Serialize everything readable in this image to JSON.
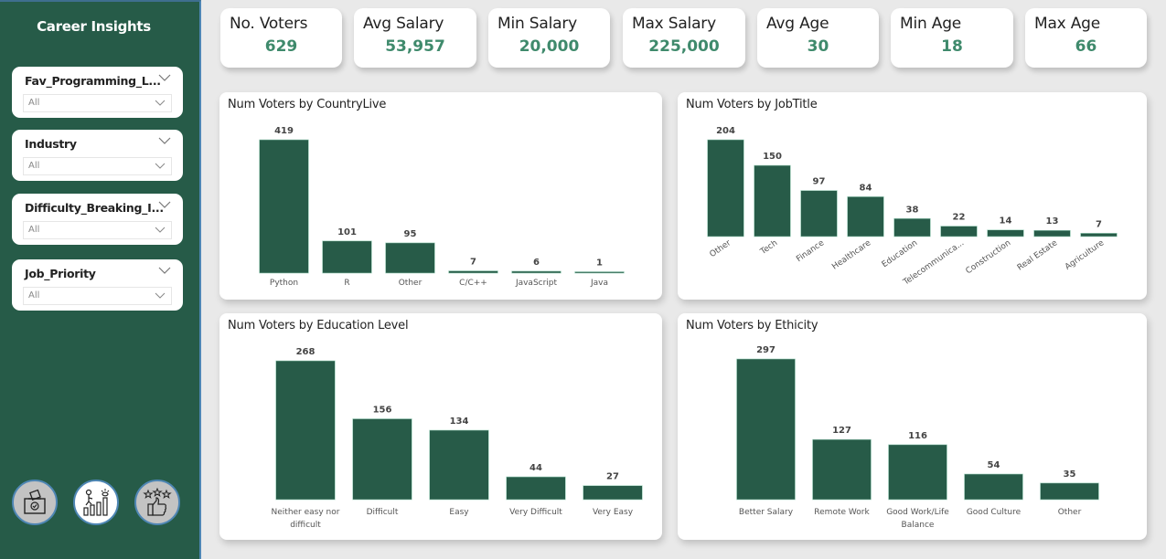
{
  "sidebar": {
    "title": "Career Insights",
    "slicers": [
      {
        "label": "Fav_Programming_L...",
        "value": "All"
      },
      {
        "label": "Industry",
        "value": "All"
      },
      {
        "label": "Difficulty_Breaking_I...",
        "value": "All"
      },
      {
        "label": "Job_Priority",
        "value": "All"
      }
    ],
    "nav_icons": [
      {
        "name": "ballot-box-icon",
        "active": false
      },
      {
        "name": "career-growth-icon",
        "active": true
      },
      {
        "name": "rating-thumbs-up-icon",
        "active": false
      }
    ]
  },
  "kpis": [
    {
      "label": "No. Voters",
      "value": "629"
    },
    {
      "label": "Avg Salary",
      "value": "53,957"
    },
    {
      "label": "Min Salary",
      "value": "20,000"
    },
    {
      "label": "Max Salary",
      "value": "225,000"
    },
    {
      "label": "Avg Age",
      "value": "30"
    },
    {
      "label": "Min Age",
      "value": "18"
    },
    {
      "label": "Max Age",
      "value": "66"
    }
  ],
  "colors": {
    "sidebar_bg": "#265b48",
    "bar": "#275b48",
    "kpi_value": "#3f8a6c",
    "page_bg": "#e9e9e9"
  },
  "chart_data": [
    {
      "type": "bar",
      "title": "Num Voters by CountryLive",
      "categories": [
        "Python",
        "R",
        "Other",
        "C/C++",
        "JavaScript",
        "Java"
      ],
      "values": [
        419,
        101,
        95,
        7,
        6,
        1
      ],
      "xlabel": "",
      "ylabel": "",
      "grid": false,
      "label_rotation": 0
    },
    {
      "type": "bar",
      "title": "Num Voters by JobTitle",
      "categories": [
        "Other",
        "Tech",
        "Finance",
        "Healthcare",
        "Education",
        "Telecommunica...",
        "Construction",
        "Real Estate",
        "Agriculture"
      ],
      "values": [
        204,
        150,
        97,
        84,
        38,
        22,
        14,
        13,
        7
      ],
      "xlabel": "",
      "ylabel": "",
      "grid": false,
      "label_rotation": -35
    },
    {
      "type": "bar",
      "title": "Num Voters by Education Level",
      "categories": [
        "Neither easy nor difficult",
        "Difficult",
        "Easy",
        "Very Difficult",
        "Very Easy"
      ],
      "values": [
        268,
        156,
        134,
        44,
        27
      ],
      "xlabel": "",
      "ylabel": "",
      "grid": false,
      "label_rotation": 0
    },
    {
      "type": "bar",
      "title": "Num Voters by Ethicity",
      "categories": [
        "Better Salary",
        "Remote Work",
        "Good Work/Life Balance",
        "Good Culture",
        "Other"
      ],
      "values": [
        297,
        127,
        116,
        54,
        35
      ],
      "xlabel": "",
      "ylabel": "",
      "grid": false,
      "label_rotation": 0
    }
  ]
}
